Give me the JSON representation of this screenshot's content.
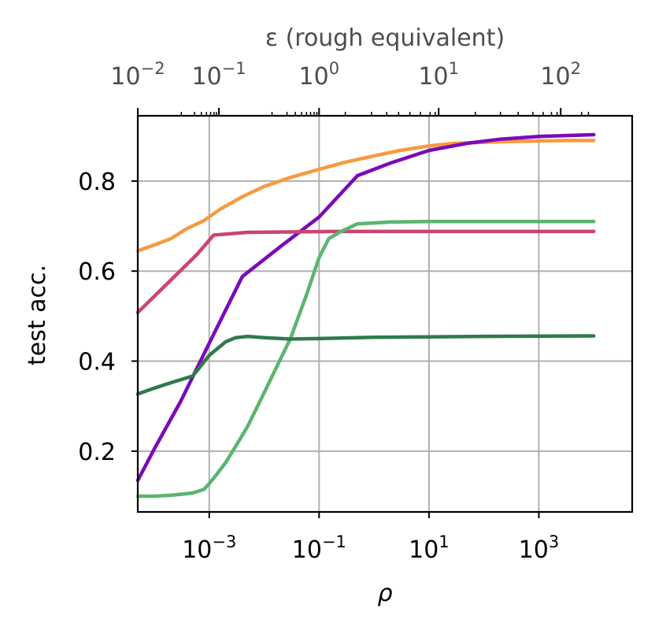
{
  "chart_data": {
    "type": "line",
    "xlabel": "ρ",
    "ylabel": "test acc.",
    "top_xlabel": "ε (rough equivalent)",
    "x_scale": "log",
    "xlim": [
      5e-05,
      50000
    ],
    "ylim": [
      0.065,
      0.945
    ],
    "grid": true,
    "x_ticks": [
      {
        "value": 0.001,
        "base": "10",
        "exp": "−3"
      },
      {
        "value": 0.1,
        "base": "10",
        "exp": "−1"
      },
      {
        "value": 10,
        "base": "10",
        "exp": "1"
      },
      {
        "value": 1000,
        "base": "10",
        "exp": "3"
      }
    ],
    "y_ticks": [
      {
        "value": 0.2,
        "label": "0.2"
      },
      {
        "value": 0.4,
        "label": "0.4"
      },
      {
        "value": 0.6,
        "label": "0.6"
      },
      {
        "value": 0.8,
        "label": "0.8"
      }
    ],
    "top_x_ticks": [
      {
        "rho": 5e-05,
        "base": "10",
        "exp": "−2"
      },
      {
        "rho": 0.0015,
        "base": "10",
        "exp": "−1"
      },
      {
        "rho": 0.1,
        "base": "10",
        "exp": "0"
      },
      {
        "rho": 15,
        "base": "10",
        "exp": "1"
      },
      {
        "rho": 2500,
        "base": "10",
        "exp": "2"
      }
    ],
    "top_minor_ticks_rho": [
      0.00031,
      0.00054,
      0.00072,
      0.00089,
      0.00106,
      0.00122,
      0.00135,
      0.0139,
      0.026,
      0.037,
      0.048,
      0.059,
      0.07,
      0.081,
      0.091,
      0.3,
      0.9,
      1.7,
      2.8,
      4.5,
      7,
      10.5,
      13,
      70,
      200,
      420,
      780,
      1200,
      1700,
      2150,
      6000,
      8000
    ],
    "series": [
      {
        "color": "#f79a3f",
        "points": [
          [
            5e-05,
            0.645
          ],
          [
            0.0001,
            0.658
          ],
          [
            0.0002,
            0.672
          ],
          [
            0.0004,
            0.695
          ],
          [
            0.0008,
            0.712
          ],
          [
            0.0016,
            0.738
          ],
          [
            0.004,
            0.765
          ],
          [
            0.01,
            0.788
          ],
          [
            0.03,
            0.808
          ],
          [
            0.1,
            0.826
          ],
          [
            0.3,
            0.842
          ],
          [
            1,
            0.856
          ],
          [
            3,
            0.868
          ],
          [
            10,
            0.878
          ],
          [
            30,
            0.884
          ],
          [
            100,
            0.886
          ],
          [
            300,
            0.888
          ],
          [
            1000,
            0.889
          ],
          [
            3000,
            0.89
          ],
          [
            10000,
            0.89
          ]
        ]
      },
      {
        "color": "#7b0ab8",
        "points": [
          [
            5e-05,
            0.135
          ],
          [
            0.0001,
            0.205
          ],
          [
            0.0003,
            0.31
          ],
          [
            0.001,
            0.44
          ],
          [
            0.004,
            0.588
          ],
          [
            0.02,
            0.655
          ],
          [
            0.1,
            0.72
          ],
          [
            0.5,
            0.812
          ],
          [
            2,
            0.84
          ],
          [
            10,
            0.868
          ],
          [
            50,
            0.884
          ],
          [
            200,
            0.893
          ],
          [
            1000,
            0.899
          ],
          [
            10000,
            0.903
          ]
        ]
      },
      {
        "color": "#cc4470",
        "points": [
          [
            5e-05,
            0.508
          ],
          [
            0.0002,
            0.58
          ],
          [
            0.0006,
            0.637
          ],
          [
            0.0012,
            0.68
          ],
          [
            0.005,
            0.686
          ],
          [
            0.03,
            0.687
          ],
          [
            0.2,
            0.688
          ],
          [
            2,
            0.688
          ],
          [
            100,
            0.688
          ],
          [
            10000,
            0.688
          ]
        ]
      },
      {
        "color": "#5cb56e",
        "points": [
          [
            5e-05,
            0.1
          ],
          [
            0.0001,
            0.1
          ],
          [
            0.0002,
            0.102
          ],
          [
            0.0005,
            0.107
          ],
          [
            0.0008,
            0.115
          ],
          [
            0.001,
            0.128
          ],
          [
            0.0013,
            0.145
          ],
          [
            0.002,
            0.175
          ],
          [
            0.003,
            0.21
          ],
          [
            0.005,
            0.255
          ],
          [
            0.01,
            0.33
          ],
          [
            0.03,
            0.45
          ],
          [
            0.06,
            0.55
          ],
          [
            0.1,
            0.63
          ],
          [
            0.15,
            0.672
          ],
          [
            0.25,
            0.688
          ],
          [
            0.5,
            0.705
          ],
          [
            2,
            0.709
          ],
          [
            10,
            0.71
          ],
          [
            100,
            0.71
          ],
          [
            10000,
            0.71
          ]
        ]
      },
      {
        "color": "#2f7a4b",
        "points": [
          [
            5e-05,
            0.327
          ],
          [
            0.0001,
            0.34
          ],
          [
            0.0002,
            0.352
          ],
          [
            0.0005,
            0.367
          ],
          [
            0.001,
            0.413
          ],
          [
            0.002,
            0.443
          ],
          [
            0.003,
            0.452
          ],
          [
            0.005,
            0.455
          ],
          [
            0.01,
            0.452
          ],
          [
            0.03,
            0.449
          ],
          [
            0.1,
            0.45
          ],
          [
            1,
            0.453
          ],
          [
            10,
            0.454
          ],
          [
            100,
            0.455
          ],
          [
            10000,
            0.456
          ]
        ]
      }
    ]
  }
}
